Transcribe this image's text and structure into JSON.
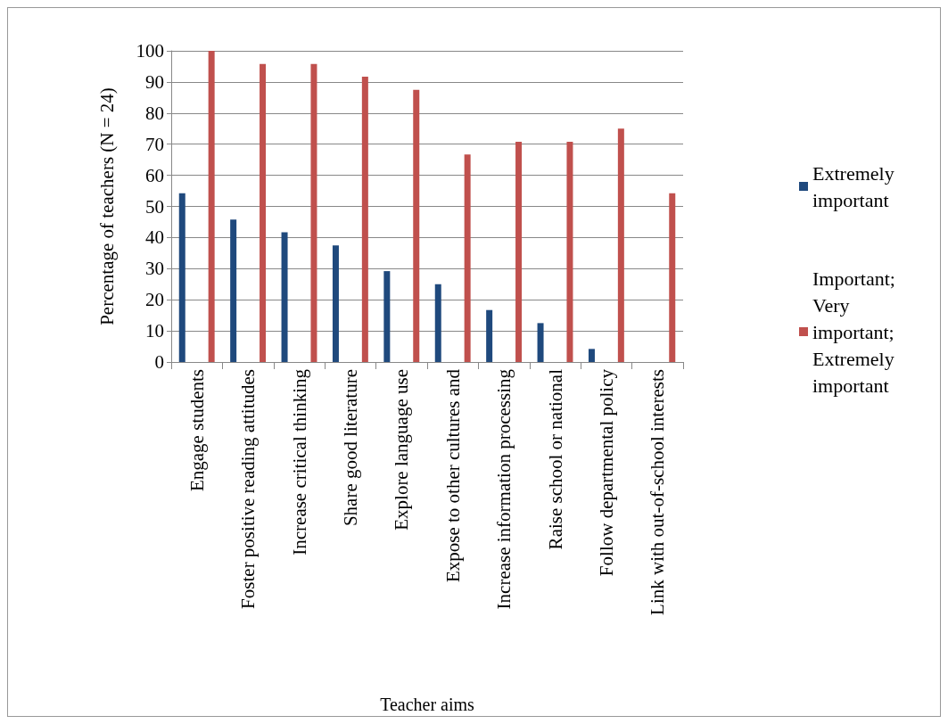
{
  "chart_data": {
    "type": "bar",
    "xlabel": "Teacher aims",
    "ylabel": "Percentage of teachers (N = 24)",
    "categories": [
      "Engage students",
      "Foster positive reading attitudes",
      "Increase critical thinking",
      "Share good literature",
      "Explore language use",
      "Expose to other cultures and",
      "Increase information processing",
      "Raise school or national",
      "Follow departmental policy",
      "Link with out-of-school interests"
    ],
    "series": [
      {
        "name": "Extremely important",
        "color": "#1f497d",
        "values": [
          54.2,
          45.8,
          41.7,
          37.5,
          29.2,
          25,
          16.7,
          12.5,
          4.2,
          0
        ]
      },
      {
        "name": "Important; Very important; Extremely important",
        "color": "#c0504d",
        "values": [
          100,
          95.8,
          95.8,
          91.7,
          87.5,
          66.7,
          70.8,
          70.8,
          75,
          54.2
        ]
      }
    ],
    "ylim": [
      0,
      100
    ],
    "yticks": [
      0,
      10,
      20,
      30,
      40,
      50,
      60,
      70,
      80,
      90,
      100
    ],
    "grid": "y",
    "legend": "right"
  }
}
